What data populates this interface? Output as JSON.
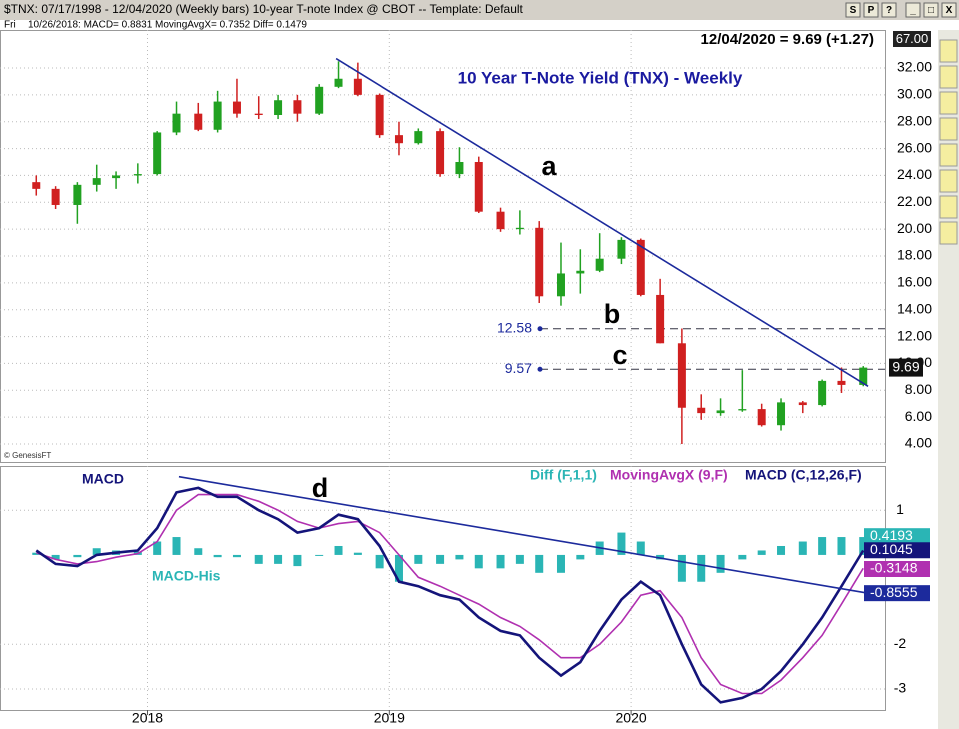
{
  "window": {
    "header": "$TNX: 07/17/1998 - 12/04/2020 (Weekly bars)   10-year T-note Index @ CBOT  --  Template: Default",
    "day": "Fri",
    "info": "10/26/2018: MACD= 0.8831  MovingAvgX= 0.7352  Diff= 0.1479",
    "buttons": [
      "S",
      "P",
      "?",
      "_",
      "□",
      "X"
    ],
    "credit": "© GenesisFT"
  },
  "chart_data": [
    {
      "type": "candlestick",
      "title": "10 Year T-Note Yield (TNX) - Weekly",
      "quote": "12/04/2020 = 9.69 (+1.27)",
      "top_box": "67.00",
      "last_value": 9.69,
      "annotations": [
        "a",
        "b",
        "c"
      ],
      "levels": [
        12.58,
        9.57
      ],
      "x": [
        2017.54,
        2017.62,
        2017.71,
        2017.79,
        2017.87,
        2017.96,
        2018.04,
        2018.12,
        2018.21,
        2018.29,
        2018.37,
        2018.46,
        2018.54,
        2018.62,
        2018.71,
        2018.79,
        2018.87,
        2018.96,
        2019.04,
        2019.12,
        2019.21,
        2019.29,
        2019.37,
        2019.46,
        2019.54,
        2019.62,
        2019.71,
        2019.79,
        2019.87,
        2019.96,
        2020.04,
        2020.12,
        2020.21,
        2020.29,
        2020.37,
        2020.46,
        2020.54,
        2020.62,
        2020.71,
        2020.79,
        2020.87,
        2020.96
      ],
      "open": [
        23.5,
        23,
        21.8,
        23.3,
        23.8,
        24,
        24.1,
        27.2,
        28.6,
        27.4,
        29.5,
        28.6,
        28.5,
        29.6,
        28.6,
        30.6,
        31.2,
        30,
        27,
        26.4,
        27.3,
        24.1,
        25,
        21.3,
        20,
        20.1,
        15,
        16.7,
        16.9,
        17.8,
        19.2,
        15.1,
        11.5,
        6.7,
        6.3,
        6.5,
        6.6,
        5.4,
        7.1,
        6.9,
        8.7,
        8.4
      ],
      "high": [
        24,
        23.2,
        23.5,
        24.8,
        24.3,
        24.9,
        27.3,
        29.5,
        29.4,
        30.3,
        31.2,
        29.9,
        30,
        30,
        30.8,
        32.5,
        32.4,
        30.1,
        28,
        27.5,
        27.5,
        26.1,
        25.4,
        21.6,
        21.4,
        20.6,
        19,
        18.5,
        19.7,
        19.4,
        19.3,
        16.3,
        12.6,
        7.7,
        7.4,
        9.5,
        7,
        7.4,
        7.2,
        8.8,
        9.7,
        9.8
      ],
      "low": [
        22.5,
        21.5,
        20.4,
        22.8,
        23,
        23.4,
        24,
        27,
        27.3,
        27.2,
        28.3,
        28.2,
        28.2,
        28,
        28.5,
        30.5,
        29.9,
        26.8,
        25.5,
        26.3,
        23.9,
        23.8,
        21.2,
        19.8,
        19.6,
        14.5,
        14.3,
        15.2,
        16.8,
        17.4,
        15,
        11.5,
        4,
        5.8,
        6.1,
        6.4,
        5.3,
        5,
        6.3,
        6.8,
        7.8,
        8.3
      ],
      "close": [
        23,
        21.8,
        23.3,
        23.8,
        24,
        24.1,
        27.2,
        28.6,
        27.4,
        29.5,
        28.6,
        28.5,
        29.6,
        28.6,
        30.6,
        31.2,
        30,
        27,
        26.4,
        27.3,
        24.1,
        25,
        21.3,
        20,
        20.1,
        15,
        16.7,
        16.9,
        17.8,
        19.2,
        15.1,
        11.5,
        6.7,
        6.3,
        6.5,
        6.6,
        5.4,
        7.1,
        6.9,
        8.7,
        8.4,
        9.69
      ],
      "up_color": "#21a121",
      "down_color": "#d02020",
      "trendline": {
        "x": [
          2018.78,
          2020.98
        ],
        "y": [
          32.7,
          8.3
        ],
        "color": "#1c2a9c"
      },
      "xlim": [
        2017.39,
        2021.05
      ],
      "ylim": [
        2.66,
        34.83
      ],
      "yticks": [
        {
          "value": 4,
          "label": "4.00"
        },
        {
          "value": 6,
          "label": "6.00"
        },
        {
          "value": 8,
          "label": "8.00"
        },
        {
          "value": 10,
          "label": "10.00"
        },
        {
          "value": 12,
          "label": "12.00"
        },
        {
          "value": 14,
          "label": "14.00"
        },
        {
          "value": 16,
          "label": "16.00"
        },
        {
          "value": 18,
          "label": "18.00"
        },
        {
          "value": 20,
          "label": "20.00"
        },
        {
          "value": 22,
          "label": "22.00"
        },
        {
          "value": 24,
          "label": "24.00"
        },
        {
          "value": 26,
          "label": "26.00"
        },
        {
          "value": 28,
          "label": "28.00"
        },
        {
          "value": 30,
          "label": "30.00"
        },
        {
          "value": 32,
          "label": "32.00"
        }
      ],
      "grid": true
    },
    {
      "type": "macd",
      "labels": [
        "MACD",
        "MACD-His",
        "d"
      ],
      "x": [
        2017.54,
        2017.62,
        2017.71,
        2017.79,
        2017.87,
        2017.96,
        2018.04,
        2018.12,
        2018.21,
        2018.29,
        2018.37,
        2018.46,
        2018.54,
        2018.62,
        2018.71,
        2018.79,
        2018.87,
        2018.96,
        2019.04,
        2019.12,
        2019.21,
        2019.29,
        2019.37,
        2019.46,
        2019.54,
        2019.62,
        2019.71,
        2019.79,
        2019.87,
        2019.96,
        2020.04,
        2020.12,
        2020.21,
        2020.29,
        2020.37,
        2020.46,
        2020.54,
        2020.62,
        2020.71,
        2020.79,
        2020.87,
        2020.96
      ],
      "series": [
        {
          "name": "Diff (F,1,1)",
          "color": "#2ab5b5",
          "style": "bar",
          "values": [
            0.05,
            -0.1,
            -0.05,
            0.15,
            0.1,
            0.07,
            0.3,
            0.4,
            0.15,
            -0.05,
            -0.05,
            -0.2,
            -0.2,
            -0.25,
            0,
            0.2,
            0.05,
            -0.3,
            -0.6,
            -0.2,
            -0.2,
            -0.1,
            -0.3,
            -0.3,
            -0.2,
            -0.4,
            -0.4,
            -0.1,
            0.3,
            0.5,
            0.3,
            -0.1,
            -0.6,
            -0.6,
            -0.4,
            -0.1,
            0.1,
            0.2,
            0.3,
            0.4,
            0.4,
            0.4
          ]
        },
        {
          "name": "MovingAvgX (9,F)",
          "color": "#b030b0",
          "style": "line",
          "values": [
            0.05,
            -0.1,
            -0.2,
            -0.15,
            -0.05,
            0.03,
            0.3,
            1.0,
            1.35,
            1.35,
            1.35,
            1.2,
            1.0,
            0.75,
            0.6,
            0.7,
            0.75,
            0.5,
            0,
            -0.5,
            -0.7,
            -0.9,
            -1.1,
            -1.4,
            -1.6,
            -1.9,
            -2.3,
            -2.3,
            -2.0,
            -1.5,
            -0.9,
            -0.8,
            -1.4,
            -2.3,
            -2.9,
            -3.1,
            -3.1,
            -2.8,
            -2.3,
            -1.8,
            -1.1,
            -0.3
          ]
        },
        {
          "name": "MACD (C,12,26,F)",
          "color": "#14147a",
          "style": "line",
          "values": [
            0.1,
            -0.2,
            -0.25,
            0,
            0.05,
            0.1,
            0.6,
            1.4,
            1.5,
            1.3,
            1.3,
            1.0,
            0.8,
            0.5,
            0.6,
            0.9,
            0.8,
            0.2,
            -0.6,
            -0.7,
            -0.9,
            -1.0,
            -1.4,
            -1.7,
            -1.8,
            -2.3,
            -2.7,
            -2.4,
            -1.7,
            -1.0,
            -0.6,
            -0.9,
            -2.0,
            -2.9,
            -3.3,
            -3.2,
            -3.0,
            -2.6,
            -2.0,
            -1.4,
            -0.7,
            0.1
          ]
        }
      ],
      "end_labels": [
        {
          "value": 0.4193,
          "color": "#2ab5b5"
        },
        {
          "value": 0.1045,
          "color": "#14147a"
        },
        {
          "value": -0.3148,
          "color": "#b030b0"
        },
        {
          "value": -0.8555,
          "color": "#1c2a9c"
        }
      ],
      "trendline": {
        "x": [
          2018.13,
          2020.98
        ],
        "y": [
          1.75,
          -0.8555
        ],
        "color": "#1c2a9c"
      },
      "xlim": [
        2017.39,
        2021.05
      ],
      "ylim": [
        -3.47,
        1.99
      ],
      "yticks": [
        1,
        -2,
        -3
      ],
      "xticks": [
        2018,
        2019,
        2020
      ],
      "grid": true
    }
  ]
}
